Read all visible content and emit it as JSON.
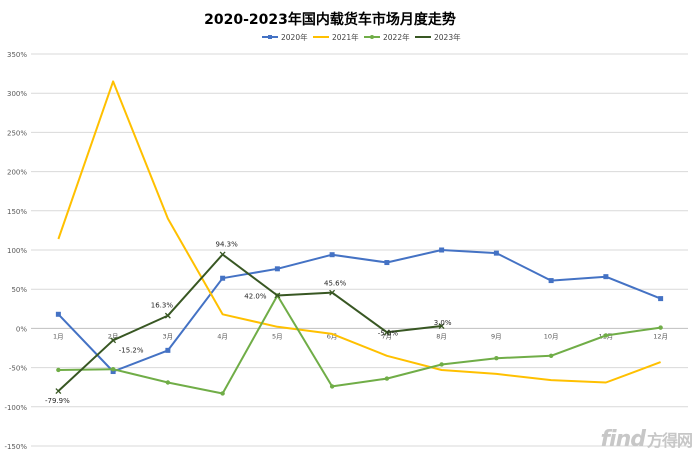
{
  "chart_data": {
    "type": "line",
    "title": "2020-2023年国内载货车市场月度走势",
    "categories": [
      "1月",
      "2月",
      "3月",
      "4月",
      "5月",
      "6月",
      "7月",
      "8月",
      "9月",
      "10月",
      "11月",
      "12月"
    ],
    "ylim": [
      -150,
      350
    ],
    "yticks": [
      -150,
      -100,
      -50,
      0,
      50,
      100,
      150,
      200,
      250,
      300,
      350
    ],
    "ytick_labels": [
      "-150%",
      "-100%",
      "-50%",
      "0%",
      "50%",
      "100%",
      "150%",
      "200%",
      "250%",
      "300%",
      "350%"
    ],
    "legend_position": "top",
    "grid": true,
    "series": [
      {
        "name": "2020年",
        "color": "#4472C4",
        "marker": "square",
        "values": [
          18,
          -55,
          -28,
          64,
          76,
          94,
          84,
          100,
          96,
          61,
          66,
          38
        ]
      },
      {
        "name": "2021年",
        "color": "#FFC000",
        "marker": "none",
        "values": [
          114,
          315,
          140,
          18,
          2,
          -7,
          -35,
          -53,
          -58,
          -66,
          -69,
          -43
        ]
      },
      {
        "name": "2022年",
        "color": "#70AD47",
        "marker": "dot",
        "values": [
          -53,
          -52,
          -69,
          -83,
          42,
          -74,
          -64,
          -46,
          -38,
          -35,
          -9,
          1
        ]
      },
      {
        "name": "2023年",
        "color": "#385723",
        "marker": "cross",
        "values": [
          -79.9,
          -15.2,
          16.3,
          94.3,
          42.0,
          45.6,
          -5.0,
          3.0,
          null,
          null,
          null,
          null
        ]
      }
    ],
    "data_labels": [
      {
        "series": 3,
        "index": 0,
        "text": "-79.9%"
      },
      {
        "series": 3,
        "index": 1,
        "text": "-15.2%"
      },
      {
        "series": 3,
        "index": 2,
        "text": "16.3%"
      },
      {
        "series": 3,
        "index": 3,
        "text": "94.3%"
      },
      {
        "series": 3,
        "index": 4,
        "text": "42.0%"
      },
      {
        "series": 3,
        "index": 5,
        "text": "45.6%"
      },
      {
        "series": 3,
        "index": 6,
        "text": "-5.0%"
      },
      {
        "series": 3,
        "index": 7,
        "text": "3.0%"
      }
    ]
  },
  "watermark": {
    "text": "find",
    "suffix": "方得网"
  }
}
